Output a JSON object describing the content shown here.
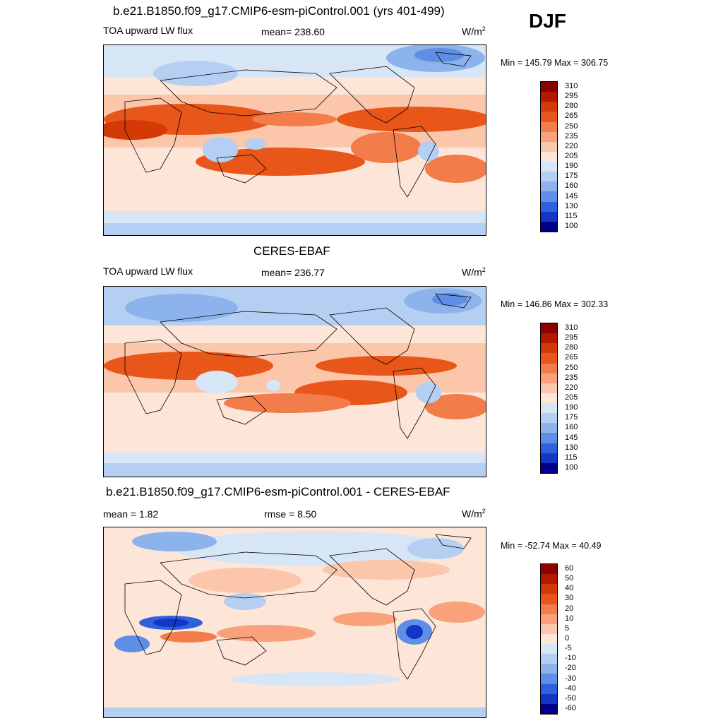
{
  "season": "DJF",
  "panels": [
    {
      "title": "b.e21.B1850.f09_g17.CMIP6-esm-piControl.001 (yrs 401-499)",
      "left_label": "TOA upward LW flux",
      "center_label": "mean= 238.60",
      "units": "W/m",
      "units_exp": "2",
      "minmax": "Min = 145.79 Max = 306.75",
      "colorbar": {
        "levels": [
          "310",
          "295",
          "280",
          "265",
          "250",
          "235",
          "220",
          "205",
          "190",
          "175",
          "160",
          "145",
          "130",
          "115",
          "100"
        ],
        "colors": [
          "#8b0000",
          "#b31800",
          "#d43a06",
          "#e8561a",
          "#f27c4a",
          "#f8a17a",
          "#fbc6aa",
          "#fde6d8",
          "#d6e6f7",
          "#b4cff2",
          "#8db3ec",
          "#5f8ee6",
          "#2f61de",
          "#1337c4",
          "#00008b"
        ]
      }
    },
    {
      "title": "CERES-EBAF",
      "left_label": "TOA upward LW flux",
      "center_label": "mean= 236.77",
      "units": "W/m",
      "units_exp": "2",
      "minmax": "Min = 146.86 Max = 302.33",
      "colorbar": {
        "levels": [
          "310",
          "295",
          "280",
          "265",
          "250",
          "235",
          "220",
          "205",
          "190",
          "175",
          "160",
          "145",
          "130",
          "115",
          "100"
        ],
        "colors": [
          "#8b0000",
          "#b31800",
          "#d43a06",
          "#e8561a",
          "#f27c4a",
          "#f8a17a",
          "#fbc6aa",
          "#fde6d8",
          "#d6e6f7",
          "#b4cff2",
          "#8db3ec",
          "#5f8ee6",
          "#2f61de",
          "#1337c4",
          "#00008b"
        ]
      }
    },
    {
      "title": "b.e21.B1850.f09_g17.CMIP6-esm-piControl.001 - CERES-EBAF",
      "left_label": "mean =   1.82",
      "center_label": "rmse =   8.50",
      "units": "W/m",
      "units_exp": "2",
      "minmax": "Min = -52.74 Max =  40.49",
      "colorbar": {
        "levels": [
          "60",
          "50",
          "40",
          "30",
          "20",
          "10",
          "5",
          "0",
          "-5",
          "-10",
          "-20",
          "-30",
          "-40",
          "-50",
          "-60"
        ],
        "colors": [
          "#8b0000",
          "#b31800",
          "#d43a06",
          "#e8561a",
          "#f27c4a",
          "#f8a17a",
          "#fbc6aa",
          "#fde6d8",
          "#d6e6f7",
          "#b4cff2",
          "#8db3ec",
          "#5f8ee6",
          "#2f61de",
          "#1337c4",
          "#00008b"
        ]
      }
    }
  ]
}
